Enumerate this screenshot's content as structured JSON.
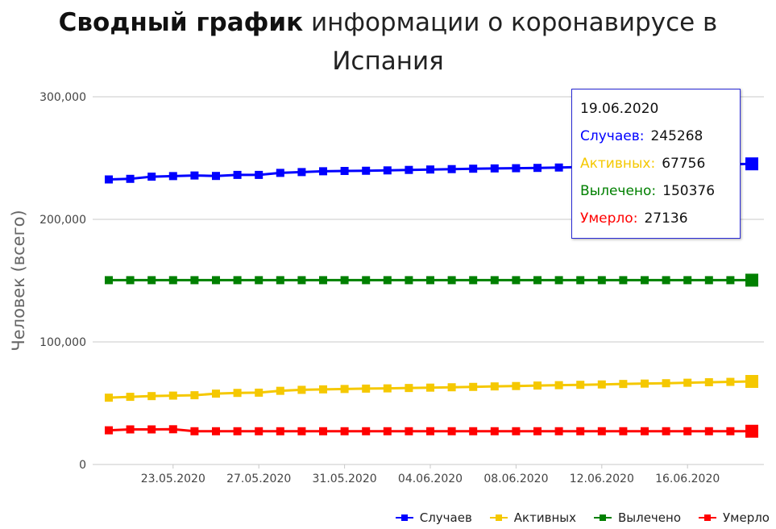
{
  "title": {
    "bold": "Сводный график",
    "rest": " информации о коронавирусе в Испания"
  },
  "chart_data": {
    "type": "line",
    "ylabel": "Человек (всего)",
    "ylim": [
      0,
      300000
    ],
    "yticks": [
      "0",
      "100,000",
      "200,000",
      "300,000"
    ],
    "xtick_labels": [
      "23.05.2020",
      "27.05.2020",
      "31.05.2020",
      "04.06.2020",
      "08.06.2020",
      "12.06.2020",
      "16.06.2020"
    ],
    "x": [
      "20.05.2020",
      "21.05.2020",
      "22.05.2020",
      "23.05.2020",
      "24.05.2020",
      "25.05.2020",
      "26.05.2020",
      "27.05.2020",
      "28.05.2020",
      "29.05.2020",
      "30.05.2020",
      "31.05.2020",
      "01.06.2020",
      "02.06.2020",
      "03.06.2020",
      "04.06.2020",
      "05.06.2020",
      "06.06.2020",
      "07.06.2020",
      "08.06.2020",
      "09.06.2020",
      "10.06.2020",
      "11.06.2020",
      "12.06.2020",
      "13.06.2020",
      "14.06.2020",
      "15.06.2020",
      "16.06.2020",
      "17.06.2020",
      "18.06.2020",
      "19.06.2020"
    ],
    "grid": true,
    "legend_position": "bottom-right",
    "series": [
      {
        "name": "Случаев",
        "color": "#0000ff",
        "values": [
          232555,
          233037,
          234824,
          235290,
          235772,
          235400,
          236259,
          236259,
          237906,
          238564,
          239228,
          239479,
          239638,
          239932,
          240326,
          240660,
          240978,
          241310,
          241550,
          241717,
          241966,
          242280,
          242707,
          243209,
          243605,
          243928,
          244109,
          244328,
          244683,
          245000,
          245268
        ]
      },
      {
        "name": "Активных",
        "color": "#f5c800",
        "values": [
          54500,
          55200,
          55800,
          56200,
          56500,
          57800,
          58400,
          58600,
          60100,
          60900,
          61300,
          61600,
          61900,
          62100,
          62400,
          62700,
          63000,
          63300,
          63700,
          64000,
          64400,
          64700,
          65000,
          65300,
          65700,
          66000,
          66300,
          66700,
          67100,
          67400,
          67756
        ]
      },
      {
        "name": "Вылечено",
        "color": "#008000",
        "values": [
          150376,
          150376,
          150376,
          150376,
          150376,
          150376,
          150376,
          150376,
          150376,
          150376,
          150376,
          150376,
          150376,
          150376,
          150376,
          150376,
          150376,
          150376,
          150376,
          150376,
          150376,
          150376,
          150376,
          150376,
          150376,
          150376,
          150376,
          150376,
          150376,
          150376,
          150376
        ]
      },
      {
        "name": "Умерло",
        "color": "#ff0000",
        "values": [
          27888,
          28628,
          28628,
          28752,
          27117,
          27117,
          27117,
          27117,
          27118,
          27119,
          27121,
          27125,
          27127,
          27127,
          27127,
          27133,
          27133,
          27134,
          27135,
          27136,
          27136,
          27136,
          27136,
          27136,
          27136,
          27136,
          27136,
          27136,
          27136,
          27136,
          27136
        ]
      }
    ]
  },
  "tooltip": {
    "date": "19.06.2020",
    "rows": [
      {
        "label": "Случаев:",
        "value": "245268",
        "color": "#0000ff"
      },
      {
        "label": "Активных:",
        "value": "67756",
        "color": "#f5c800"
      },
      {
        "label": "Вылечено:",
        "value": "150376",
        "color": "#008000"
      },
      {
        "label": "Умерло:",
        "value": "27136",
        "color": "#ff0000"
      }
    ]
  },
  "legend": [
    {
      "label": "Случаев",
      "color": "#0000ff"
    },
    {
      "label": "Активных",
      "color": "#f5c800"
    },
    {
      "label": "Вылечено",
      "color": "#008000"
    },
    {
      "label": "Умерло",
      "color": "#ff0000"
    }
  ]
}
